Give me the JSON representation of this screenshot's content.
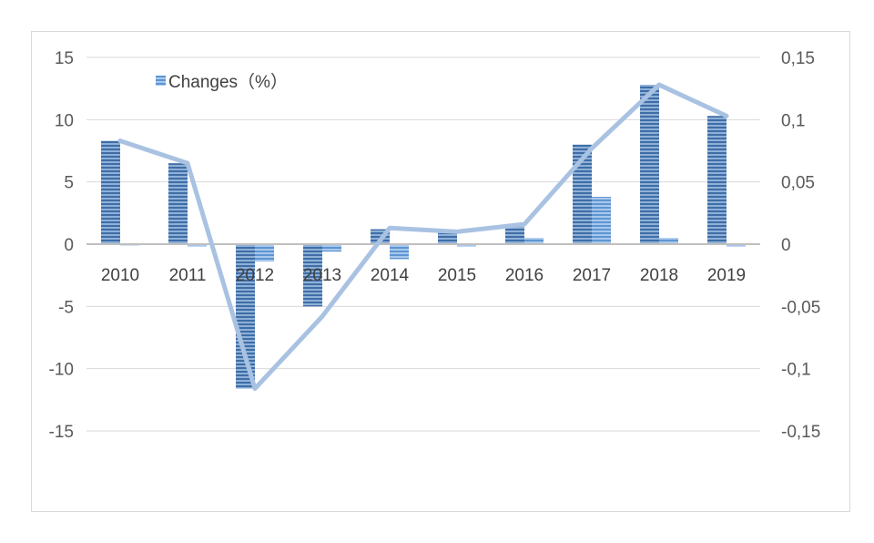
{
  "chart_data": {
    "type": "bar",
    "categories": [
      "2010",
      "2011",
      "2012",
      "2013",
      "2014",
      "2015",
      "2016",
      "2017",
      "2018",
      "2019"
    ],
    "series": [
      {
        "values": [
          8.3,
          6.5,
          -11.6,
          -5.0,
          1.2,
          0.9,
          1.4,
          8.0,
          12.8,
          10.3
        ],
        "axis": "left",
        "kind": "bar",
        "color": "#4f81bd",
        "pattern": "horizontal-stripes"
      },
      {
        "name": "Changes（%）",
        "values": [
          0.0,
          -0.2,
          -1.4,
          -0.6,
          -1.2,
          -0.2,
          0.5,
          3.8,
          0.5,
          -0.2
        ],
        "axis": "left",
        "kind": "bar",
        "color": "#6fa8dc",
        "pattern": "horizontal-stripes"
      },
      {
        "values": [
          0.083,
          0.065,
          -0.116,
          -0.058,
          0.013,
          0.01,
          0.016,
          0.077,
          0.128,
          0.103
        ],
        "axis": "right",
        "kind": "line",
        "color": "#a9c2e2"
      }
    ],
    "y_left": {
      "ticks": [
        "15",
        "10",
        "5",
        "0",
        "-5",
        "-10",
        "-15"
      ],
      "tick_values": [
        15,
        10,
        5,
        0,
        -5,
        -10,
        -15
      ],
      "ylim": [
        -15,
        15
      ]
    },
    "y_right": {
      "ticks": [
        "0,15",
        "0,1",
        "0,05",
        "0",
        "-0,05",
        "-0,1",
        "-0,15"
      ],
      "tick_values": [
        0.15,
        0.1,
        0.05,
        0,
        -0.05,
        -0.1,
        -0.15
      ],
      "ylim": [
        -0.15,
        0.15
      ]
    },
    "legend": {
      "label": "Changes（%）",
      "placement": "top-left"
    },
    "grid": true
  }
}
